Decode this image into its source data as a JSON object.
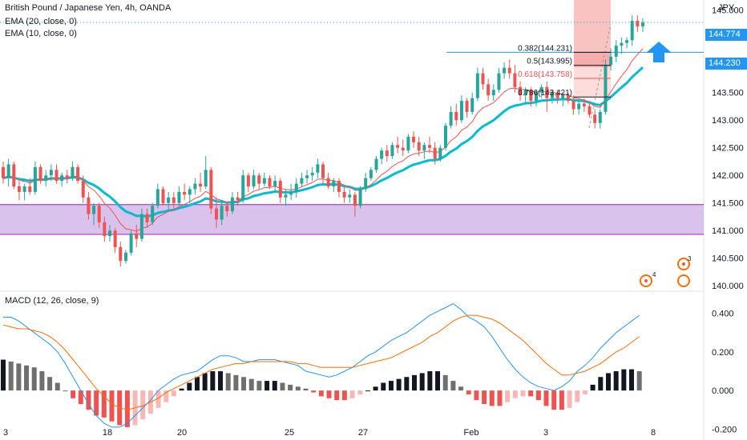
{
  "legend": {
    "symbol": "British Pound / Japanese Yen, 4h, OANDA",
    "ema20": "EMA (20, close, 0)",
    "ema10": "EMA (10, close, 0)",
    "macd": "MACD (12, 26, close, 9)"
  },
  "price_axis": {
    "unit": "JPY",
    "ticks": [
      "145.000",
      "144.500",
      "144.000",
      "143.500",
      "143.000",
      "142.500",
      "142.000",
      "141.500",
      "141.000",
      "140.500",
      "140.000"
    ],
    "last_price": "144.774",
    "hline_price": "144.230"
  },
  "macd_axis": {
    "ticks": [
      "0.400",
      "0.200",
      "0.000",
      "-0.200"
    ]
  },
  "time_axis": {
    "labels": [
      "3",
      "18",
      "20",
      "25",
      "27",
      "Feb",
      "3",
      "8"
    ]
  },
  "fib_labels": [
    "0.382(144.231)",
    "0.5(143.995)",
    "0.618(143.758)",
    "0.786(143.421)"
  ],
  "badges": [
    "4",
    "3"
  ],
  "colors": {
    "up": "#26a69a",
    "down": "#ef5350",
    "ema20": "#00bcd4",
    "ema10": "#ef5350",
    "zone": "#c9a8e3",
    "zone_border": "#9c27b0",
    "hline": "#2196f3",
    "macd_line": "#2196f3",
    "signal_line": "#ff6d00",
    "arrow": "#2196f3",
    "fib_red": "#ef5350",
    "fib_black": "#131722"
  },
  "chart_data": {
    "type": "candlestick",
    "price_range": [
      139.93,
      145.12
    ],
    "macd_range": [
      -0.24,
      0.49
    ],
    "support_zone": [
      140.93,
      141.47
    ],
    "horizontal_line": 144.23,
    "last_price": 144.774,
    "fib_levels": [
      {
        "ratio": 0.382,
        "price": 144.231
      },
      {
        "ratio": 0.5,
        "price": 143.995
      },
      {
        "ratio": 0.618,
        "price": 143.758
      },
      {
        "ratio": 0.786,
        "price": 143.421
      }
    ],
    "candles": [
      [
        142.15,
        142.25,
        141.85,
        141.95
      ],
      [
        141.95,
        142.3,
        141.8,
        142.2
      ],
      [
        142.2,
        142.25,
        141.75,
        141.8
      ],
      [
        141.8,
        141.9,
        141.55,
        141.7
      ],
      [
        141.7,
        141.85,
        141.55,
        141.8
      ],
      [
        141.8,
        141.95,
        141.65,
        141.7
      ],
      [
        141.7,
        142.25,
        141.65,
        142.15
      ],
      [
        142.15,
        142.2,
        141.85,
        141.9
      ],
      [
        141.9,
        142.1,
        141.8,
        142.0
      ],
      [
        142.0,
        142.2,
        141.9,
        142.1
      ],
      [
        142.1,
        142.2,
        141.85,
        141.9
      ],
      [
        141.9,
        142.05,
        141.8,
        142.0
      ],
      [
        142.0,
        142.1,
        141.85,
        141.95
      ],
      [
        141.95,
        142.25,
        141.9,
        142.15
      ],
      [
        142.15,
        142.2,
        141.85,
        141.9
      ],
      [
        141.9,
        142.0,
        141.5,
        141.6
      ],
      [
        141.6,
        141.7,
        141.2,
        141.3
      ],
      [
        141.3,
        141.5,
        141.1,
        141.45
      ],
      [
        141.45,
        141.5,
        141.05,
        141.15
      ],
      [
        141.15,
        141.25,
        140.8,
        140.9
      ],
      [
        140.9,
        141.1,
        140.8,
        141.0
      ],
      [
        141.0,
        141.05,
        140.6,
        140.7
      ],
      [
        140.7,
        140.8,
        140.35,
        140.45
      ],
      [
        140.45,
        140.65,
        140.4,
        140.6
      ],
      [
        140.6,
        141.0,
        140.55,
        140.95
      ],
      [
        140.95,
        141.1,
        140.7,
        140.85
      ],
      [
        140.85,
        141.4,
        140.8,
        141.3
      ],
      [
        141.3,
        141.4,
        141.05,
        141.15
      ],
      [
        141.15,
        141.5,
        141.1,
        141.45
      ],
      [
        141.45,
        141.85,
        141.4,
        141.75
      ],
      [
        141.75,
        141.8,
        141.45,
        141.5
      ],
      [
        141.5,
        141.7,
        141.35,
        141.6
      ],
      [
        141.6,
        141.7,
        141.4,
        141.5
      ],
      [
        141.5,
        141.8,
        141.45,
        141.7
      ],
      [
        141.7,
        141.85,
        141.55,
        141.65
      ],
      [
        141.65,
        141.8,
        141.5,
        141.75
      ],
      [
        141.75,
        141.95,
        141.65,
        141.85
      ],
      [
        141.85,
        142.05,
        141.7,
        141.8
      ],
      [
        141.8,
        142.35,
        141.75,
        142.1
      ],
      [
        142.1,
        142.15,
        141.3,
        141.4
      ],
      [
        141.4,
        141.6,
        141.05,
        141.2
      ],
      [
        141.2,
        141.55,
        141.1,
        141.45
      ],
      [
        141.45,
        141.5,
        141.25,
        141.35
      ],
      [
        141.35,
        141.7,
        141.3,
        141.6
      ],
      [
        141.6,
        141.7,
        141.45,
        141.55
      ],
      [
        141.55,
        142.1,
        141.5,
        142.0
      ],
      [
        142.0,
        142.05,
        141.7,
        141.8
      ],
      [
        141.8,
        142.1,
        141.75,
        142.0
      ],
      [
        142.0,
        142.05,
        141.75,
        141.85
      ],
      [
        141.85,
        142.05,
        141.8,
        141.95
      ],
      [
        141.95,
        142.0,
        141.75,
        141.8
      ],
      [
        141.8,
        142.0,
        141.7,
        141.9
      ],
      [
        141.9,
        141.95,
        141.5,
        141.6
      ],
      [
        141.6,
        141.75,
        141.45,
        141.65
      ],
      [
        141.65,
        141.85,
        141.55,
        141.7
      ],
      [
        141.7,
        141.95,
        141.6,
        141.85
      ],
      [
        141.85,
        142.05,
        141.8,
        141.95
      ],
      [
        141.95,
        142.1,
        141.85,
        142.0
      ],
      [
        142.0,
        142.15,
        141.9,
        142.05
      ],
      [
        142.05,
        142.3,
        141.95,
        142.2
      ],
      [
        142.2,
        142.25,
        141.85,
        141.95
      ],
      [
        141.95,
        142.05,
        141.75,
        141.8
      ],
      [
        141.8,
        141.95,
        141.7,
        141.9
      ],
      [
        141.9,
        141.95,
        141.6,
        141.7
      ],
      [
        141.7,
        141.8,
        141.5,
        141.6
      ],
      [
        141.6,
        141.75,
        141.5,
        141.65
      ],
      [
        141.65,
        141.7,
        141.25,
        141.45
      ],
      [
        141.45,
        141.8,
        141.4,
        141.75
      ],
      [
        141.75,
        142.05,
        141.7,
        141.95
      ],
      [
        141.95,
        142.15,
        141.9,
        142.1
      ],
      [
        142.1,
        142.35,
        142.05,
        142.3
      ],
      [
        142.3,
        142.5,
        142.2,
        142.45
      ],
      [
        142.45,
        142.55,
        142.25,
        142.35
      ],
      [
        142.35,
        142.6,
        142.3,
        142.55
      ],
      [
        142.55,
        142.7,
        142.4,
        142.5
      ],
      [
        142.5,
        142.65,
        142.35,
        142.45
      ],
      [
        142.45,
        142.75,
        142.4,
        142.7
      ],
      [
        142.7,
        142.8,
        142.5,
        142.6
      ],
      [
        142.6,
        142.7,
        142.35,
        142.45
      ],
      [
        142.45,
        142.6,
        142.3,
        142.55
      ],
      [
        142.55,
        142.7,
        142.4,
        142.5
      ],
      [
        142.5,
        142.6,
        142.2,
        142.3
      ],
      [
        142.3,
        142.55,
        142.25,
        142.5
      ],
      [
        142.5,
        142.95,
        142.45,
        142.9
      ],
      [
        142.9,
        143.25,
        142.85,
        143.15
      ],
      [
        143.15,
        143.3,
        142.9,
        143.0
      ],
      [
        143.0,
        143.45,
        142.95,
        143.35
      ],
      [
        143.35,
        143.4,
        143.05,
        143.15
      ],
      [
        143.15,
        143.5,
        143.1,
        143.4
      ],
      [
        143.4,
        143.95,
        143.35,
        143.85
      ],
      [
        143.85,
        143.95,
        143.55,
        143.65
      ],
      [
        143.65,
        143.75,
        143.35,
        143.45
      ],
      [
        143.45,
        143.65,
        143.35,
        143.55
      ],
      [
        143.55,
        143.95,
        143.5,
        143.85
      ],
      [
        143.85,
        144.05,
        143.75,
        143.95
      ],
      [
        143.95,
        144.1,
        143.75,
        143.85
      ],
      [
        143.85,
        144.0,
        143.5,
        143.6
      ],
      [
        143.6,
        143.7,
        143.35,
        143.45
      ],
      [
        143.45,
        143.6,
        143.3,
        143.55
      ],
      [
        143.55,
        143.6,
        143.25,
        143.35
      ],
      [
        143.35,
        143.55,
        143.25,
        143.5
      ],
      [
        143.5,
        143.65,
        143.4,
        143.6
      ],
      [
        143.6,
        143.7,
        143.15,
        143.4
      ],
      [
        143.4,
        143.55,
        143.3,
        143.5
      ],
      [
        143.5,
        143.55,
        143.3,
        143.4
      ],
      [
        143.4,
        143.5,
        143.25,
        143.45
      ],
      [
        143.45,
        143.5,
        143.3,
        143.35
      ],
      [
        143.35,
        143.45,
        143.1,
        143.2
      ],
      [
        143.2,
        143.35,
        143.1,
        143.3
      ],
      [
        143.3,
        143.4,
        143.15,
        143.25
      ],
      [
        143.25,
        143.3,
        143.05,
        143.1
      ],
      [
        143.1,
        143.2,
        142.85,
        142.95
      ],
      [
        142.95,
        143.2,
        142.85,
        143.15
      ],
      [
        143.15,
        144.1,
        143.1,
        144.0
      ],
      [
        144.0,
        144.3,
        143.9,
        144.15
      ],
      [
        144.15,
        144.45,
        144.05,
        144.35
      ],
      [
        144.35,
        144.5,
        144.2,
        144.4
      ],
      [
        144.4,
        144.5,
        144.3,
        144.45
      ],
      [
        144.45,
        144.9,
        144.35,
        144.8
      ],
      [
        144.8,
        144.9,
        144.6,
        144.7
      ],
      [
        144.7,
        144.85,
        144.6,
        144.77
      ]
    ],
    "macd": {
      "hist": [
        0.16,
        0.15,
        0.14,
        0.13,
        0.12,
        0.1,
        0.07,
        0.04,
        0.0,
        -0.04,
        -0.07,
        -0.1,
        -0.13,
        -0.14,
        -0.16,
        -0.18,
        -0.19,
        -0.18,
        -0.15,
        -0.12,
        -0.09,
        -0.06,
        -0.03,
        0.01,
        0.04,
        0.07,
        0.09,
        0.1,
        0.1,
        0.09,
        0.08,
        0.07,
        0.06,
        0.05,
        0.05,
        0.05,
        0.04,
        0.03,
        0.02,
        0.01,
        -0.01,
        -0.03,
        -0.04,
        -0.05,
        -0.05,
        -0.04,
        -0.02,
        0.0,
        0.02,
        0.04,
        0.05,
        0.06,
        0.07,
        0.08,
        0.09,
        0.1,
        0.1,
        0.08,
        0.05,
        0.02,
        -0.02,
        -0.05,
        -0.07,
        -0.08,
        -0.08,
        -0.06,
        -0.04,
        -0.03,
        -0.03,
        -0.05,
        -0.08,
        -0.1,
        -0.1,
        -0.09,
        -0.06,
        -0.02,
        0.03,
        0.07,
        0.09,
        0.1,
        0.11,
        0.11,
        0.1
      ],
      "macd_line": [
        0.38,
        0.38,
        0.36,
        0.33,
        0.3,
        0.27,
        0.24,
        0.2,
        0.14,
        0.07,
        0.0,
        -0.07,
        -0.13,
        -0.17,
        -0.19,
        -0.19,
        -0.17,
        -0.13,
        -0.09,
        -0.05,
        0.0,
        0.03,
        0.06,
        0.08,
        0.09,
        0.1,
        0.13,
        0.16,
        0.18,
        0.18,
        0.17,
        0.15,
        0.15,
        0.16,
        0.16,
        0.16,
        0.15,
        0.14,
        0.13,
        0.1,
        0.09,
        0.08,
        0.07,
        0.08,
        0.1,
        0.12,
        0.15,
        0.18,
        0.2,
        0.23,
        0.26,
        0.28,
        0.3,
        0.33,
        0.36,
        0.39,
        0.41,
        0.43,
        0.45,
        0.42,
        0.38,
        0.36,
        0.33,
        0.28,
        0.22,
        0.16,
        0.11,
        0.07,
        0.04,
        0.02,
        0.01,
        0.0,
        0.02,
        0.05,
        0.1,
        0.13,
        0.17,
        0.22,
        0.26,
        0.3,
        0.33,
        0.36,
        0.39
      ],
      "signal_line": [
        0.34,
        0.33,
        0.32,
        0.32,
        0.31,
        0.3,
        0.28,
        0.25,
        0.21,
        0.16,
        0.11,
        0.06,
        0.01,
        -0.03,
        -0.07,
        -0.09,
        -0.1,
        -0.09,
        -0.08,
        -0.06,
        -0.04,
        -0.01,
        0.01,
        0.03,
        0.05,
        0.07,
        0.09,
        0.11,
        0.12,
        0.13,
        0.14,
        0.14,
        0.15,
        0.15,
        0.15,
        0.15,
        0.15,
        0.15,
        0.14,
        0.14,
        0.13,
        0.12,
        0.12,
        0.12,
        0.12,
        0.12,
        0.13,
        0.14,
        0.15,
        0.16,
        0.17,
        0.19,
        0.21,
        0.23,
        0.25,
        0.28,
        0.3,
        0.33,
        0.36,
        0.38,
        0.39,
        0.39,
        0.38,
        0.37,
        0.35,
        0.32,
        0.29,
        0.26,
        0.22,
        0.18,
        0.14,
        0.11,
        0.08,
        0.08,
        0.09,
        0.1,
        0.12,
        0.14,
        0.17,
        0.2,
        0.22,
        0.25,
        0.28
      ]
    }
  }
}
